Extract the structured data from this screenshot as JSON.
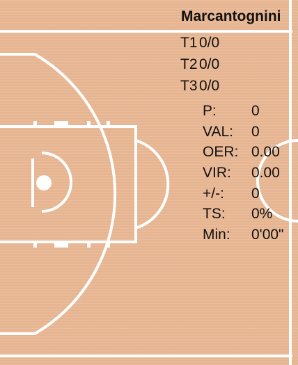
{
  "player": {
    "name": "Marcantognini"
  },
  "shooting": [
    {
      "label": "T1",
      "value": "0/0"
    },
    {
      "label": "T2",
      "value": "0/0"
    },
    {
      "label": "T3",
      "value": "0/0"
    }
  ],
  "stats": [
    {
      "label": "P:",
      "value": "0"
    },
    {
      "label": "VAL:",
      "value": "0"
    },
    {
      "label": "OER:",
      "value": "0.00"
    },
    {
      "label": "VIR:",
      "value": "0.00"
    },
    {
      "label": "+/-:",
      "value": "0"
    },
    {
      "label": "TS:",
      "value": "0%"
    },
    {
      "label": "Min:",
      "value": "0'00\""
    }
  ],
  "colors": {
    "court": "#eab894",
    "lines": "#ffffff",
    "text": "#111111"
  }
}
